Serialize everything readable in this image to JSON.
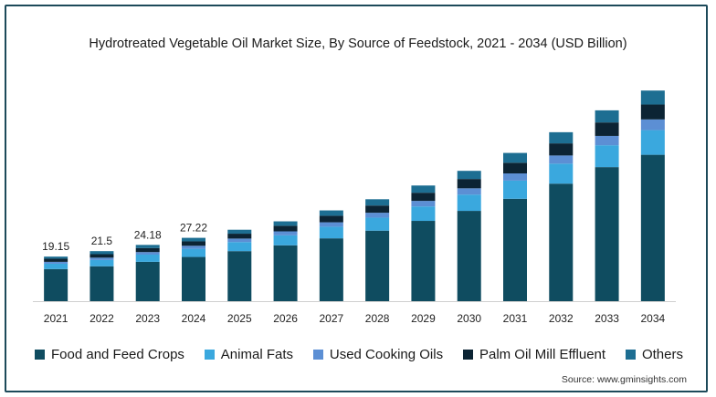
{
  "chart_data": {
    "type": "bar",
    "stacked": true,
    "title": "Hydrotreated Vegetable Oil Market Size, By Source of Feedstock, 2021 - 2034 (USD Billion)",
    "source": "Source: www.gminsights.com",
    "categories": [
      "2021",
      "2022",
      "2023",
      "2024",
      "2025",
      "2026",
      "2027",
      "2028",
      "2029",
      "2030",
      "2031",
      "2032",
      "2033",
      "2034"
    ],
    "totals_labels": [
      "19.15",
      "21.5",
      "24.18",
      "27.22",
      "",
      "",
      "",
      "",
      "",
      "",
      "",
      "",
      "",
      ""
    ],
    "series": [
      {
        "name": "Food and Feed Crops",
        "color": "#0f4c60",
        "values": [
          13.8,
          15.0,
          16.9,
          19.0,
          21.5,
          24.0,
          27.0,
          30.3,
          34.5,
          38.8,
          44.0,
          50.5,
          57.6,
          62.9
        ]
      },
      {
        "name": "Animal Fats",
        "color": "#3aa8de",
        "values": [
          2.3,
          2.7,
          3.1,
          3.5,
          3.9,
          4.3,
          5.0,
          5.6,
          6.2,
          7.0,
          7.8,
          8.6,
          9.4,
          10.6
        ]
      },
      {
        "name": "Used Cooking Oils",
        "color": "#5c8fd4",
        "values": [
          0.8,
          1.0,
          1.1,
          1.3,
          1.5,
          1.7,
          1.9,
          2.1,
          2.4,
          2.7,
          3.1,
          3.5,
          4.0,
          4.6
        ]
      },
      {
        "name": "Palm Oil Mill Effluent",
        "color": "#0c2434",
        "values": [
          1.35,
          1.5,
          1.7,
          1.9,
          2.1,
          2.4,
          2.8,
          3.1,
          3.5,
          4.0,
          4.6,
          5.2,
          5.8,
          6.4
        ]
      },
      {
        "name": "Others",
        "color": "#1d6e92",
        "values": [
          0.9,
          1.3,
          1.38,
          1.52,
          1.7,
          1.9,
          2.3,
          2.7,
          3.1,
          3.5,
          4.2,
          4.8,
          5.2,
          6.0
        ]
      }
    ],
    "ylim": [
      0,
      95
    ],
    "grid": false,
    "legend": "bottom"
  }
}
